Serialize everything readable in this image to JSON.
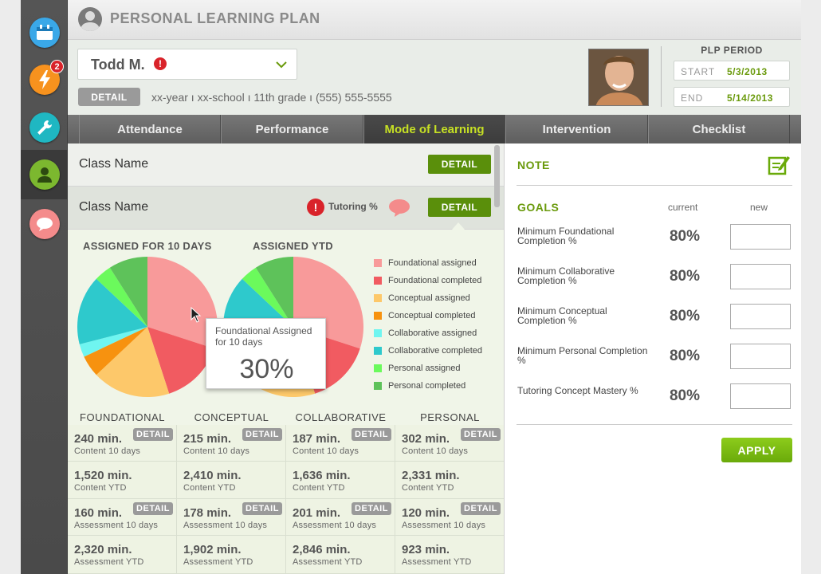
{
  "page": {
    "title": "PERSONAL LEARNING PLAN"
  },
  "nav": {
    "badge_count": "2",
    "items": [
      "calendar-icon",
      "lightning-icon",
      "wrench-icon",
      "person-icon",
      "chat-icon"
    ]
  },
  "student": {
    "name": "Todd M.",
    "detail_label": "DETAIL",
    "info": "xx-year  ı  xx-school  ı  11th grade  ı  (555) 555-5555"
  },
  "plp": {
    "title": "PLP PERIOD",
    "start_label": "START",
    "start": "5/3/2013",
    "end_label": "END",
    "end": "5/14/2013"
  },
  "tabs": [
    "Attendance",
    "Performance",
    "Mode of Learning",
    "Intervention",
    "Checklist"
  ],
  "active_tab": "Mode of Learning",
  "classes": [
    {
      "name": "Class Name",
      "detail": "DETAIL"
    },
    {
      "name": "Class Name",
      "detail": "DETAIL",
      "flag": "Tutoring %"
    }
  ],
  "charts": {
    "pie1_title": "ASSIGNED FOR 10 DAYS",
    "pie2_title": "ASSIGNED YTD",
    "legend": [
      {
        "label": "Foundational assigned",
        "color": "#f89a9a"
      },
      {
        "label": "Foundational completed",
        "color": "#f15b61"
      },
      {
        "label": "Conceptual assigned",
        "color": "#fdc86a"
      },
      {
        "label": "Conceptual completed",
        "color": "#f7920f"
      },
      {
        "label": "Collaborative assigned",
        "color": "#6ff5f0"
      },
      {
        "label": "Collaborative completed",
        "color": "#2ec9cc"
      },
      {
        "label": "Personal assigned",
        "color": "#6bfa5c"
      },
      {
        "label": "Personal completed",
        "color": "#5ec25a"
      }
    ],
    "tooltip": {
      "label": "Foundational Assigned for 10 days",
      "value": "30%"
    }
  },
  "chart_data": [
    {
      "type": "pie",
      "title": "ASSIGNED FOR 10 DAYS",
      "labels": [
        "Foundational assigned",
        "Foundational completed",
        "Conceptual assigned",
        "Conceptual completed",
        "Collaborative assigned",
        "Collaborative completed",
        "Personal assigned",
        "Personal completed"
      ],
      "values": [
        30,
        15,
        18,
        5,
        3,
        16,
        4,
        9
      ]
    },
    {
      "type": "pie",
      "title": "ASSIGNED YTD",
      "labels": [
        "Foundational assigned",
        "Foundational completed",
        "Conceptual assigned",
        "Conceptual completed",
        "Collaborative assigned",
        "Collaborative completed",
        "Personal assigned",
        "Personal completed"
      ],
      "values": [
        30,
        15,
        18,
        5,
        3,
        16,
        4,
        9
      ]
    }
  ],
  "stats": {
    "columns": [
      "FOUNDATIONAL",
      "CONCEPTUAL",
      "COLLABORATIVE",
      "PERSONAL"
    ],
    "detail": "DETAIL",
    "rows": [
      {
        "sub": "Content 10 days",
        "values": [
          "240 min.",
          "215 min.",
          "187 min.",
          "302 min."
        ],
        "detail": true
      },
      {
        "sub": "Content YTD",
        "values": [
          "1,520 min.",
          "2,410 min.",
          "1,636 min.",
          "2,331 min."
        ],
        "detail": false
      },
      {
        "sub": "Assessment 10 days",
        "values": [
          "160 min.",
          "178 min.",
          "201 min.",
          "120 min."
        ],
        "detail": true
      },
      {
        "sub": "Assessment YTD",
        "values": [
          "2,320 min.",
          "1,902 min.",
          "2,846 min.",
          "923 min."
        ],
        "detail": false
      }
    ]
  },
  "right": {
    "note_title": "NOTE",
    "goals_title": "GOALS",
    "col_current": "current",
    "col_new": "new",
    "goals": [
      {
        "label": "Minimum Foundational Completion %",
        "current": "80%"
      },
      {
        "label": "Minimum Collaborative Completion %",
        "current": "80%"
      },
      {
        "label": "Minimum Conceptual Completion %",
        "current": "80%"
      },
      {
        "label": "Minimum Personal Completion %",
        "current": "80%"
      },
      {
        "label": "Tutoring Concept Mastery %",
        "current": "80%"
      }
    ],
    "apply": "APPLY"
  }
}
